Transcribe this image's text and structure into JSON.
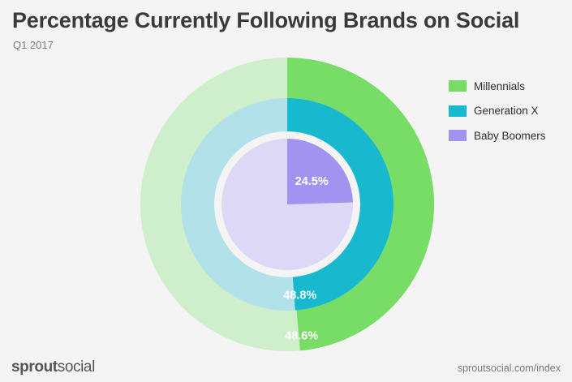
{
  "title": "Percentage Currently Following Brands on Social",
  "subtitle": "Q1 2017",
  "brand": {
    "bold": "sprout",
    "regular": "social"
  },
  "source": "sproutsocial.com/index",
  "chart_data": {
    "type": "pie",
    "variant": "nested-donut",
    "title": "Percentage Currently Following Brands on Social",
    "subtitle": "Q1 2017",
    "unit": "%",
    "legend_position": "top-right",
    "series": [
      {
        "name": "Millennials",
        "value": 48.6,
        "label": "48.6%",
        "color": "#77dd66",
        "track_color": "#cfeecb"
      },
      {
        "name": "Generation X",
        "value": 48.8,
        "label": "48.8%",
        "color": "#18b8cf",
        "track_color": "#b3e1e9"
      },
      {
        "name": "Baby Boomers",
        "value": 24.5,
        "label": "24.5%",
        "color": "#a293f0",
        "track_color": "#dcd8f5"
      }
    ]
  }
}
